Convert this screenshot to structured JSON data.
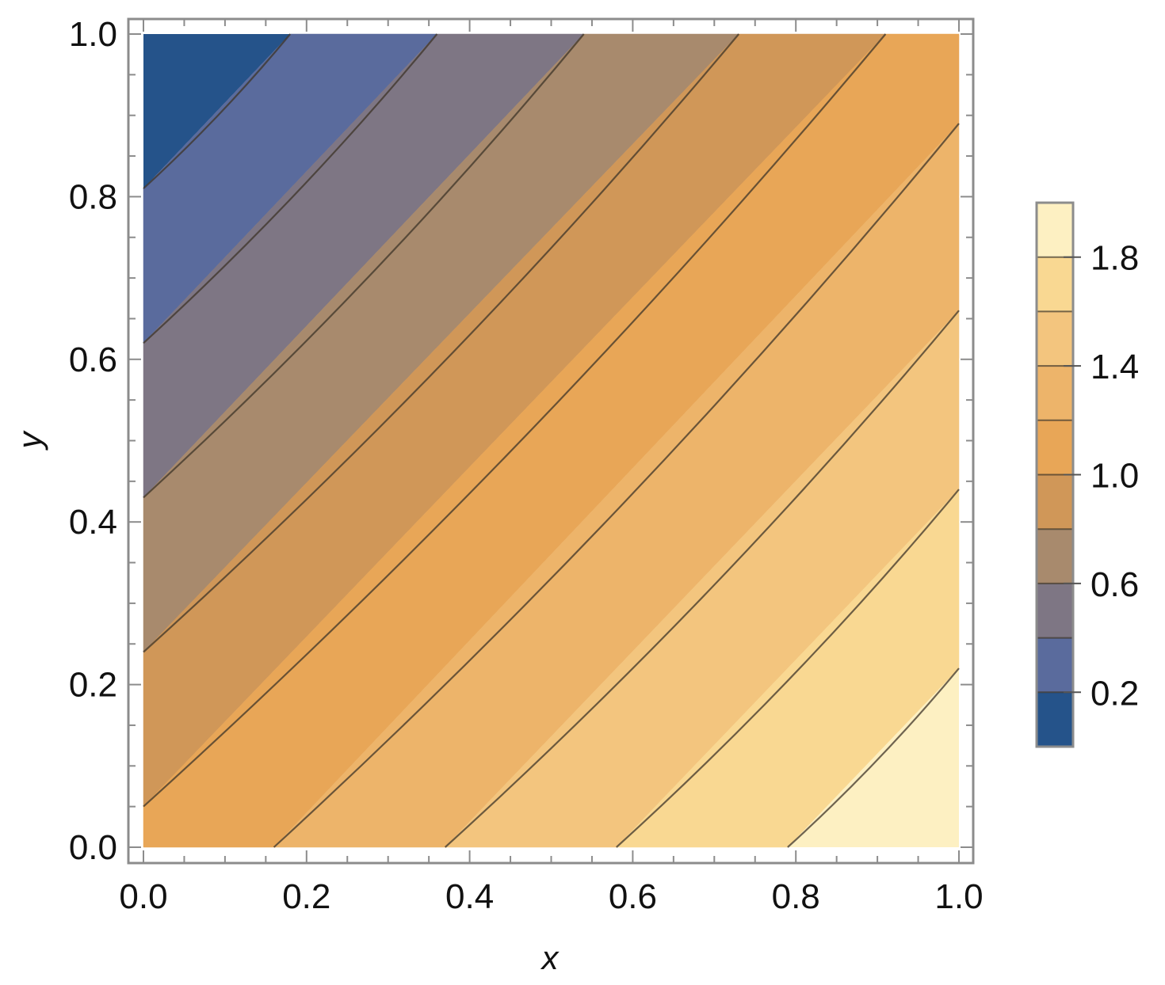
{
  "chart_data": {
    "type": "contour",
    "xlabel": "x",
    "ylabel": "y",
    "xlim": [
      0.0,
      1.0
    ],
    "ylim": [
      0.0,
      1.0
    ],
    "x_ticks": [
      "0.0",
      "0.2",
      "0.4",
      "0.6",
      "0.8",
      "1.0"
    ],
    "y_ticks": [
      "0.0",
      "0.2",
      "0.4",
      "0.6",
      "0.8",
      "1.0"
    ],
    "contour_levels": [
      0.2,
      0.4,
      0.6,
      0.8,
      1.0,
      1.2,
      1.4,
      1.6,
      1.8
    ],
    "value_range": [
      0.0,
      2.0
    ],
    "contour_intercepts": [
      {
        "level": 0.2,
        "y_at_x0": 0.81,
        "y_at_y1_x": 0.18
      },
      {
        "level": 0.4,
        "y_at_x0": 0.62,
        "y_at_y1_x": 0.36
      },
      {
        "level": 0.6,
        "y_at_x0": 0.43,
        "y_at_y1_x": 0.54
      },
      {
        "level": 0.8,
        "y_at_x0": 0.24,
        "y_at_y1_x": 0.73
      },
      {
        "level": 1.0,
        "y_at_x0": 0.05,
        "y_at_y1_x": 0.91
      },
      {
        "level": 1.2,
        "x_at_y0": 0.16,
        "y_at_x1": 0.89
      },
      {
        "level": 1.4,
        "x_at_y0": 0.37,
        "y_at_x1": 0.66
      },
      {
        "level": 1.6,
        "x_at_y0": 0.58,
        "y_at_x1": 0.44
      },
      {
        "level": 1.8,
        "x_at_y0": 0.79,
        "y_at_x1": 0.22
      }
    ],
    "band_colors": [
      "#25538a",
      "#5a6b9d",
      "#7e7684",
      "#a88a6d",
      "#d09758",
      "#e8a657",
      "#edb46a",
      "#f3c57e",
      "#f9d892",
      "#fdf0c2"
    ],
    "legend": {
      "placement": "right",
      "tick_labels": [
        "0.2",
        "0.6",
        "1.0",
        "1.4",
        "1.8"
      ],
      "tick_values": [
        0.2,
        0.6,
        1.0,
        1.4,
        1.8
      ]
    }
  }
}
